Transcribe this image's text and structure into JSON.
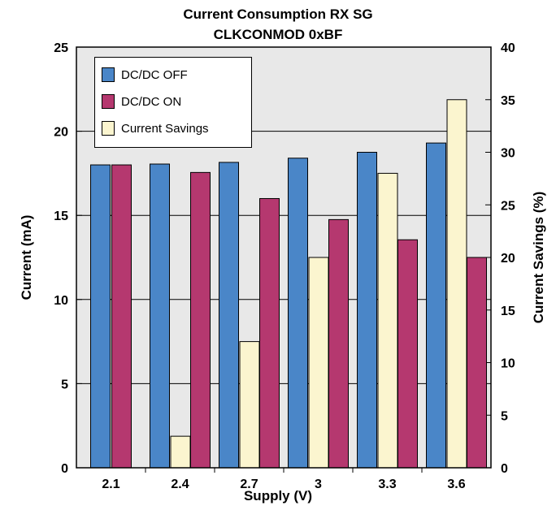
{
  "chart_data": {
    "type": "bar",
    "title": "Current Consumption RX SG",
    "subtitle": "CLKCONMOD 0xBF",
    "xlabel": "Supply (V)",
    "ylabel": "Current (mA)",
    "y2label": "Current Savings (%)",
    "categories": [
      "2.1",
      "2.4",
      "2.7",
      "3",
      "3.3",
      "3.6"
    ],
    "ylim": [
      0,
      25
    ],
    "y2lim": [
      0,
      40
    ],
    "yticks": [
      "0",
      "5",
      "10",
      "15",
      "20",
      "25"
    ],
    "y2ticks": [
      "0",
      "5",
      "10",
      "15",
      "20",
      "25",
      "30",
      "35",
      "40"
    ],
    "grid": true,
    "legend_position": "top-left",
    "series": [
      {
        "name": "DC/DC OFF",
        "axis": "left",
        "color": "#4a86c8",
        "values": [
          18.0,
          18.05,
          18.15,
          18.4,
          18.75,
          19.3
        ]
      },
      {
        "name": "DC/DC ON",
        "axis": "left",
        "color": "#b5386f",
        "values": [
          18.0,
          17.55,
          16.0,
          14.75,
          13.55,
          12.5
        ]
      },
      {
        "name": "Current Savings",
        "axis": "right",
        "color": "#fbf5cf",
        "values": [
          0,
          3,
          12,
          20,
          28,
          35
        ]
      }
    ]
  }
}
